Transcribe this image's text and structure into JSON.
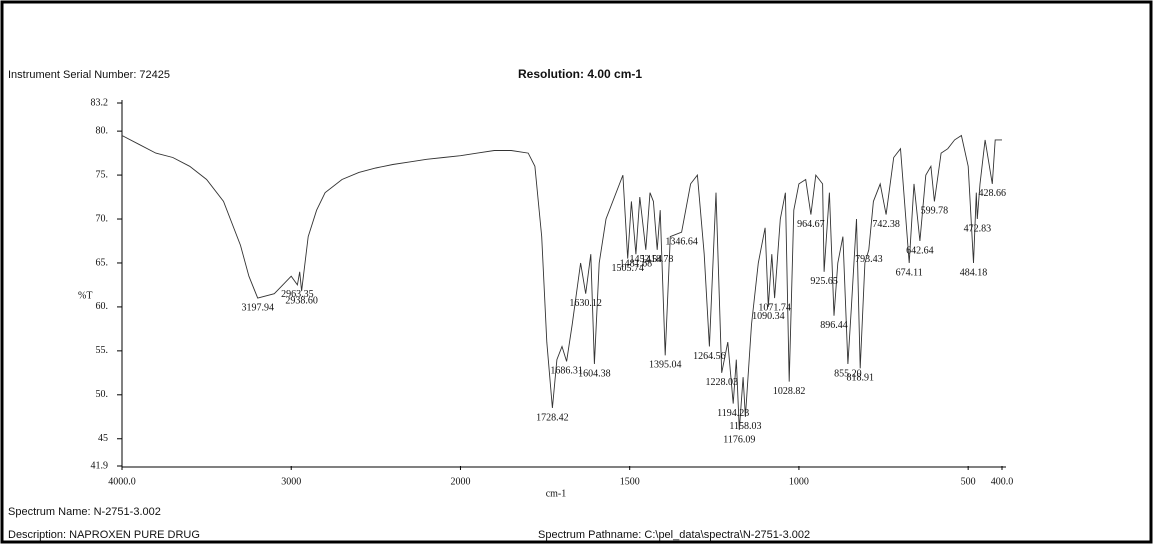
{
  "header": {
    "serial": "Instrument Serial Number: 72425",
    "resolution": "Resolution: 4.00 cm-1"
  },
  "footer": {
    "name": "Spectrum Name: N-2751-3.002",
    "description": "Description: NAPROXEN PURE DRUG",
    "pathname": "Spectrum Pathname: C:\\pel_data\\spectra\\N-2751-3.002"
  },
  "chart_data": {
    "type": "line",
    "ylabel": "%T",
    "xlabel": "cm-1",
    "color": "#333333",
    "xlim": [
      4000,
      400
    ],
    "x_scale_break": 2000,
    "ylim": [
      41.9,
      83.2
    ],
    "xticks": [
      {
        "value": 4000,
        "label": "4000.0"
      },
      3000,
      2000,
      1500,
      1000,
      500,
      {
        "value": 400,
        "label": "400.0"
      }
    ],
    "yticks": [
      41.9,
      45,
      {
        "value": 50,
        "label": "50."
      },
      {
        "value": 55,
        "label": "55."
      },
      {
        "value": 60,
        "label": "60."
      },
      {
        "value": 65,
        "label": "65."
      },
      {
        "value": 70,
        "label": "70."
      },
      {
        "value": 75,
        "label": "75."
      },
      {
        "value": 80,
        "label": "80."
      },
      83.2
    ],
    "x": [
      4000,
      3900,
      3800,
      3700,
      3600,
      3500,
      3400,
      3300,
      3250,
      3197.94,
      3100,
      3050,
      3000,
      2963.35,
      2950,
      2938.6,
      2900,
      2850,
      2800,
      2700,
      2600,
      2500,
      2400,
      2300,
      2200,
      2100,
      2000,
      1950,
      1900,
      1850,
      1800,
      1780,
      1760,
      1745,
      1728.42,
      1715,
      1700,
      1686.31,
      1670,
      1645,
      1630.12,
      1615,
      1604.38,
      1590,
      1570,
      1520,
      1505.74,
      1495,
      1481.68,
      1470,
      1452.54,
      1440,
      1430,
      1418.78,
      1410,
      1395.04,
      1380,
      1346.64,
      1320,
      1300,
      1280,
      1264.56,
      1245,
      1228.03,
      1210,
      1194.23,
      1185,
      1176.09,
      1165,
      1158.03,
      1140,
      1120,
      1100,
      1090.34,
      1080,
      1071.74,
      1055,
      1040,
      1028.82,
      1015,
      1000,
      980,
      964.67,
      950,
      930,
      925.65,
      910,
      896.44,
      885,
      870,
      855.2,
      845,
      830,
      818.91,
      805,
      793.43,
      780,
      760,
      742.38,
      720,
      700,
      674.11,
      660,
      642.64,
      625,
      610,
      599.78,
      580,
      560,
      540,
      520,
      500,
      484.18,
      476,
      472.83,
      465,
      450,
      428.66,
      420,
      400
    ],
    "values": [
      79.5,
      78.5,
      77.5,
      77,
      76,
      74.5,
      72,
      67,
      63.5,
      61,
      61.5,
      62.5,
      63.5,
      62.5,
      64,
      61.8,
      68,
      71,
      73,
      74.5,
      75.3,
      75.8,
      76.2,
      76.5,
      76.8,
      77,
      77.2,
      77.5,
      77.8,
      77.8,
      77.5,
      76,
      68,
      56,
      48.5,
      54,
      55.5,
      53.8,
      58,
      65,
      61.5,
      66,
      53.5,
      65,
      70,
      75,
      65.5,
      72,
      66,
      72.5,
      66.5,
      73,
      72,
      66.5,
      71,
      54.5,
      68,
      68.5,
      74,
      75,
      66,
      55.5,
      73,
      52.5,
      56,
      49,
      54,
      46,
      52,
      47.5,
      58,
      65,
      69,
      60,
      66,
      61,
      70,
      73,
      51.5,
      71,
      74,
      74.5,
      70.5,
      75,
      74,
      64,
      73,
      59,
      65,
      68,
      53.5,
      60,
      70,
      53,
      65,
      66.5,
      72,
      74,
      70.5,
      77,
      78,
      65,
      74,
      67.5,
      75,
      76,
      72,
      77.5,
      78,
      79,
      79.5,
      76,
      65,
      73,
      70,
      74,
      79,
      74,
      79,
      79
    ],
    "peaks": [
      {
        "x": 3197.94,
        "label": "3197.94"
      },
      {
        "x": 2963.35,
        "label": "2963.35"
      },
      {
        "x": 2938.6,
        "label": "2938.60"
      },
      {
        "x": 1728.42,
        "label": "1728.42"
      },
      {
        "x": 1686.31,
        "label": "1686.31"
      },
      {
        "x": 1630.12,
        "label": "1630.12"
      },
      {
        "x": 1604.38,
        "label": "1604.38"
      },
      {
        "x": 1505.74,
        "label": "1505.74"
      },
      {
        "x": 1481.68,
        "label": "1481.68"
      },
      {
        "x": 1452.54,
        "label": "1452.54"
      },
      {
        "x": 1418.78,
        "label": "1418.78"
      },
      {
        "x": 1395.04,
        "label": "1395.04"
      },
      {
        "x": 1346.64,
        "label": "1346.64"
      },
      {
        "x": 1264.56,
        "label": "1264.56"
      },
      {
        "x": 1228.03,
        "label": "1228.03"
      },
      {
        "x": 1194.23,
        "label": "1194.23"
      },
      {
        "x": 1176.09,
        "label": "1176.09"
      },
      {
        "x": 1158.03,
        "label": "1158.03"
      },
      {
        "x": 1090.34,
        "label": "1090.34"
      },
      {
        "x": 1071.74,
        "label": "1071.74"
      },
      {
        "x": 1028.82,
        "label": "1028.82"
      },
      {
        "x": 964.67,
        "label": "964.67"
      },
      {
        "x": 925.65,
        "label": "925.65"
      },
      {
        "x": 896.44,
        "label": "896.44"
      },
      {
        "x": 855.2,
        "label": "855.20"
      },
      {
        "x": 818.91,
        "label": "818.91"
      },
      {
        "x": 793.43,
        "label": "793.43"
      },
      {
        "x": 742.38,
        "label": "742.38"
      },
      {
        "x": 674.11,
        "label": "674.11"
      },
      {
        "x": 642.64,
        "label": "642.64"
      },
      {
        "x": 599.78,
        "label": "599.78"
      },
      {
        "x": 484.18,
        "label": "484.18"
      },
      {
        "x": 472.83,
        "label": "472.83"
      },
      {
        "x": 428.66,
        "label": "428.66"
      }
    ]
  }
}
